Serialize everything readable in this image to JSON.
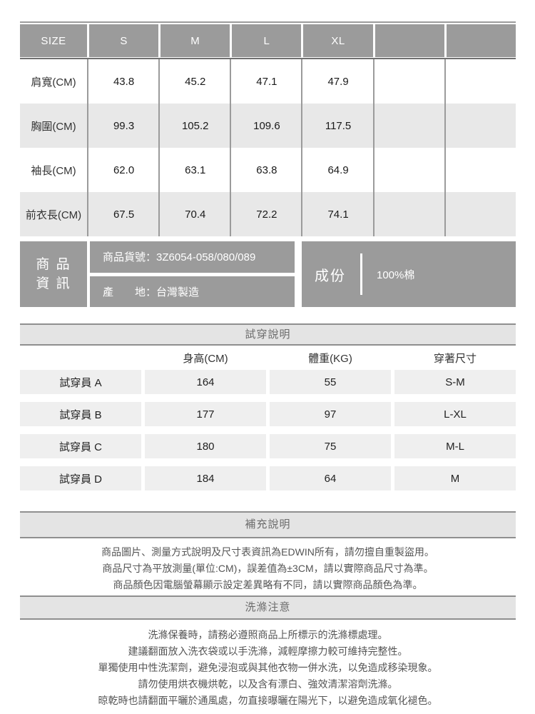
{
  "colors": {
    "dark_gray": "#9b9b9b",
    "row_gray": "#e8e8e8",
    "cell_gray": "#efefef",
    "bar_bg": "#e4e4e4",
    "bar_border": "#8f8f8f",
    "grid_line": "#9b9b9b",
    "header_underline": "#707070",
    "text_dark": "#222222",
    "text_mid": "#555555",
    "text_bar": "#6b6b6b",
    "white_text": "#ffffff"
  },
  "size_table": {
    "header": [
      "SIZE",
      "S",
      "M",
      "L",
      "XL",
      "",
      ""
    ],
    "rows": [
      {
        "label": "肩寬(CM)",
        "values": [
          "43.8",
          "45.2",
          "47.1",
          "47.9",
          "",
          ""
        ]
      },
      {
        "label": "胸圍(CM)",
        "values": [
          "99.3",
          "105.2",
          "109.6",
          "117.5",
          "",
          ""
        ]
      },
      {
        "label": "袖長(CM)",
        "values": [
          "62.0",
          "63.1",
          "63.8",
          "64.9",
          "",
          ""
        ]
      },
      {
        "label": "前衣長(CM)",
        "values": [
          "67.5",
          "70.4",
          "72.2",
          "74.1",
          "",
          ""
        ]
      }
    ]
  },
  "product_info": {
    "title_line1": "商 品",
    "title_line2": "資 訊",
    "sku_line": "商品貨號：3Z6054-058/080/089",
    "origin_line": "產　　地：台灣製造",
    "composition_label": "成份",
    "composition_value": "100%棉"
  },
  "fitting": {
    "title": "試穿說明",
    "columns": [
      "",
      "身高(CM)",
      "體重(KG)",
      "穿著尺寸"
    ],
    "rows": [
      {
        "name": "試穿員 A",
        "height": "164",
        "weight": "55",
        "size": "S-M"
      },
      {
        "name": "試穿員 B",
        "height": "177",
        "weight": "97",
        "size": "L-XL"
      },
      {
        "name": "試穿員 C",
        "height": "180",
        "weight": "75",
        "size": "M-L"
      },
      {
        "name": "試穿員 D",
        "height": "184",
        "weight": "64",
        "size": "M"
      }
    ]
  },
  "supplement": {
    "title": "補充說明",
    "lines": [
      "商品圖片、測量方式說明及尺寸表資訊為EDWIN所有，請勿擅自重製盜用。",
      "商品尺寸為平放測量(單位:CM)，誤差值為±3CM，請以實際商品尺寸為準。",
      "商品顏色因電腦螢幕顯示設定差異略有不同，請以實際商品顏色為準。"
    ]
  },
  "washing": {
    "title": "洗滌注意",
    "lines": [
      "洗滌保養時，請務必遵照商品上所標示的洗滌標處理。",
      "建議翻面放入洗衣袋或以手洗滌，減輕摩擦力較可維持完整性。",
      "單獨使用中性洗潔劑，避免浸泡或與其他衣物一併水洗，以免造成移染現象。",
      "請勿使用烘衣機烘乾，以及含有漂白、強效清潔溶劑洗滌。",
      "晾乾時也請翻面平曬於通風處，勿直接曝曬在陽光下，以避免造成氧化褪色。"
    ]
  }
}
